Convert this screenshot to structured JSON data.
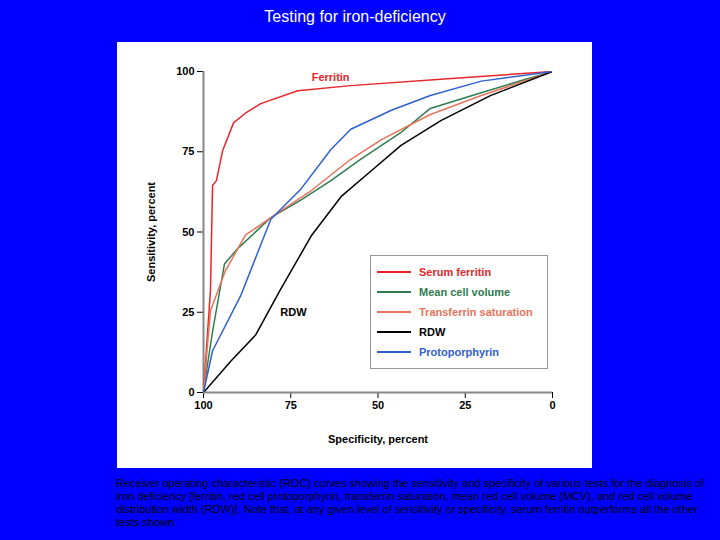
{
  "chart_data": {
    "type": "line",
    "title": "Testing for iron-deficiency",
    "caption": "Receiver operating characteristic (ROC) curves showing the sensitivity and specificity of various tests for the diagnosis of iron deficiency [ferritin, red cell protoporphyrin, transferrin saturation, mean red cell volume (MCV), and red cell volume distribution width (RDW)]. Note that, at any given level of sensitivity or specificity, serum ferritin outperforms all the other tests shown",
    "x_label": "Specificity, percent",
    "y_label": "Sensitivity, percent",
    "xlim": [
      100,
      0
    ],
    "ylim": [
      0,
      100
    ],
    "xticks": [
      100,
      75,
      50,
      25,
      0
    ],
    "yticks": [
      0,
      25,
      50,
      75,
      100
    ],
    "grid": false,
    "legend": "lower right",
    "series": [
      {
        "name": "Serum ferritin",
        "color": "#e8262a",
        "x": [
          100,
          98,
          97.4,
          96.3,
          94.5,
          91.4,
          88,
          83.6,
          73,
          57.8,
          29,
          0
        ],
        "values": [
          0,
          32,
          64.5,
          66,
          75.4,
          84,
          87,
          90,
          94,
          95.6,
          97.8,
          100
        ]
      },
      {
        "name": "Mean cell volume",
        "color": "#2e7d4f",
        "x": [
          100,
          97.4,
          94,
          90.5,
          80.7,
          72,
          63.5,
          55,
          43.4,
          35,
          23,
          8.9,
          0
        ],
        "values": [
          0.6,
          19,
          40,
          44.5,
          54.5,
          60,
          66,
          72.6,
          81,
          88.5,
          92.5,
          97.2,
          100
        ]
      },
      {
        "name": "Transferrin saturation",
        "color": "#e8735a",
        "x": [
          100,
          98,
          93.7,
          88,
          80.7,
          69,
          58,
          49,
          35,
          20.4,
          0
        ],
        "values": [
          0,
          25.5,
          38,
          49,
          54.5,
          63,
          72.5,
          78.8,
          86.6,
          92.5,
          100
        ]
      },
      {
        "name": "RDW",
        "color": "#000000",
        "x": [
          100,
          92,
          85,
          78,
          69,
          60.6,
          52,
          43.4,
          32,
          17.8,
          0
        ],
        "values": [
          0,
          10,
          18,
          32,
          49,
          61,
          69,
          77,
          84.7,
          92.5,
          100
        ]
      },
      {
        "name": "Protoporphyrin",
        "color": "#3060d0",
        "x": [
          100,
          97.4,
          89.4,
          80.7,
          72,
          63.5,
          57.8,
          46,
          35,
          20.4,
          0
        ],
        "values": [
          0,
          13,
          30,
          54,
          63.5,
          75.7,
          82,
          88,
          92.5,
          97,
          100
        ]
      }
    ],
    "annotations": [
      {
        "text": "Ferritin",
        "x": 69,
        "y": 98,
        "color": "#e8262a"
      },
      {
        "text": "RDW",
        "x": 78,
        "y": 25,
        "color": "#000000"
      }
    ]
  }
}
